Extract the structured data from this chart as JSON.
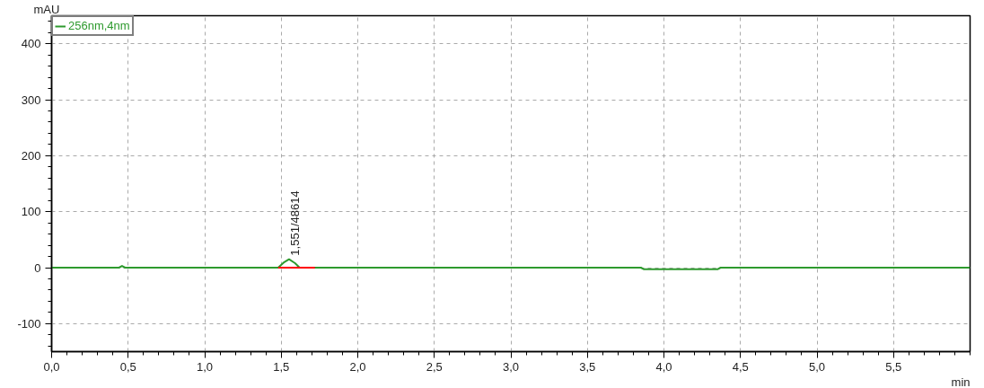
{
  "chart_data": {
    "type": "line",
    "xlabel": "min",
    "ylabel": "mAU",
    "xlim": [
      0,
      6.0
    ],
    "ylim": [
      -150,
      450
    ],
    "xticks": [
      {
        "value": 0,
        "label": "0,0"
      },
      {
        "value": 0.5,
        "label": "0,5"
      },
      {
        "value": 1,
        "label": "1,0"
      },
      {
        "value": 1.5,
        "label": "1,5"
      },
      {
        "value": 2,
        "label": "2,0"
      },
      {
        "value": 2.5,
        "label": "2,5"
      },
      {
        "value": 3,
        "label": "3,0"
      },
      {
        "value": 3.5,
        "label": "3,5"
      },
      {
        "value": 4,
        "label": "4,0"
      },
      {
        "value": 4.5,
        "label": "4,5"
      },
      {
        "value": 5,
        "label": "5,0"
      },
      {
        "value": 5.5,
        "label": "5,5"
      }
    ],
    "yticks": [
      -100,
      0,
      100,
      200,
      300,
      400
    ],
    "grid": true,
    "legend": "top left",
    "marker": "none",
    "line_style": "solid",
    "series": [
      {
        "name": "256nm,4nm",
        "color": "#2e9a2e",
        "x": [
          0,
          0.44,
          0.46,
          0.48,
          1.48,
          1.52,
          1.551,
          1.59,
          1.62,
          3.85,
          3.87,
          4.35,
          4.37,
          6.0
        ],
        "values": [
          0,
          0,
          3,
          0,
          0,
          10,
          15,
          8,
          0,
          0,
          -3,
          -3,
          0,
          0
        ]
      },
      {
        "color": "#ff0000",
        "x": [
          1.48,
          1.72
        ],
        "values": [
          0,
          0
        ]
      }
    ],
    "annotations": [
      {
        "text": "1,551/48614",
        "x": 1.551,
        "y": 15
      }
    ]
  }
}
